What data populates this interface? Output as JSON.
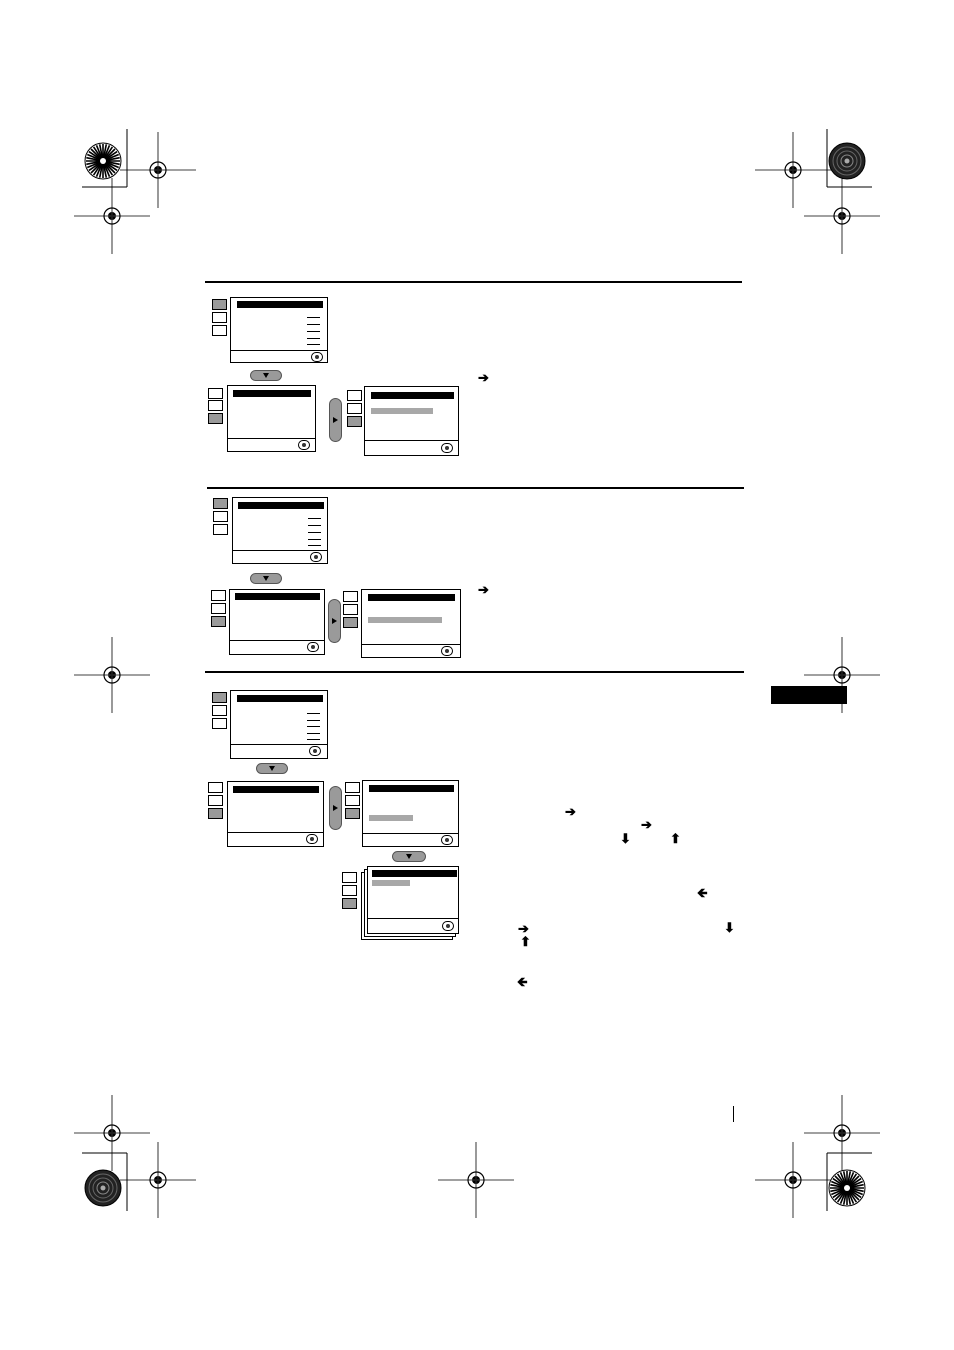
{
  "page": {
    "section_tab_label": "",
    "page_number": ""
  },
  "icons": {
    "registration_mark": "crosshair-circle-icon",
    "starburst": "starburst-icon",
    "right_arrow": "right-arrow-icon",
    "left_arrow": "left-arrow-icon",
    "up_arrow": "up-arrow-icon",
    "down_arrow": "down-arrow-icon",
    "joystick": "joystick-icon"
  },
  "arrows": {
    "right": "➔",
    "left": "🡸",
    "up": "⬆",
    "down": "⬇"
  },
  "colors": {
    "ink": "#000000",
    "highlight_grey": "#a8a8a8",
    "button_grey": "#9a9a9a",
    "paper": "#ffffff"
  }
}
